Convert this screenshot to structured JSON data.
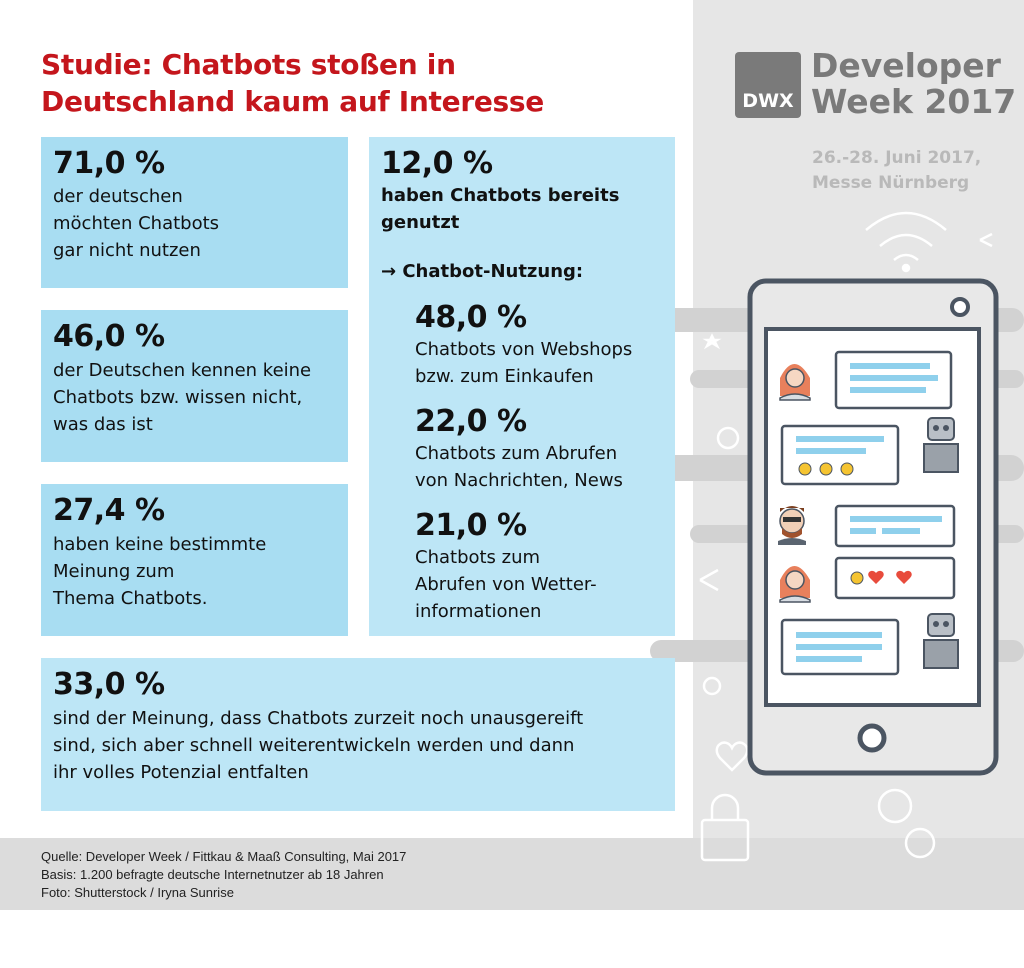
{
  "title_lines": [
    "Studie: Chatbots stoßen in",
    "Deutschland kaum auf Interesse"
  ],
  "stats": {
    "s1": {
      "percent": "71,0 %",
      "lines": [
        "der deutschen",
        "möchten Chatbots",
        "gar nicht nutzen"
      ]
    },
    "s2": {
      "percent": "46,0 %",
      "lines": [
        "der Deutschen kennen keine",
        "Chatbots bzw. wissen nicht,",
        "was das ist"
      ]
    },
    "s3": {
      "percent": "27,4 %",
      "lines": [
        "haben keine bestimmte",
        "Meinung zum",
        "Thema Chatbots."
      ]
    },
    "s4": {
      "percent": "12,0 %",
      "lines": [
        "haben Chatbots bereits",
        "genutzt"
      ]
    },
    "s5": {
      "percent": "33,0 %",
      "lines": [
        "sind der Meinung, dass Chatbots zurzeit noch unausgereift",
        "sind, sich aber schnell weiterentwickeln werden und dann",
        "ihr volles Potenzial entfalten"
      ]
    }
  },
  "usage": {
    "heading": "→ Chatbot-Nutzung:",
    "items": [
      {
        "percent": "48,0 %",
        "lines": [
          "Chatbots von Webshops",
          "bzw. zum Einkaufen"
        ]
      },
      {
        "percent": "22,0 %",
        "lines": [
          "Chatbots zum Abrufen",
          "von Nachrichten, News"
        ]
      },
      {
        "percent": "21,0 %",
        "lines": [
          "Chatbots zum",
          "Abrufen von Wetter-",
          "informationen"
        ]
      }
    ]
  },
  "event": {
    "logo": "DWX",
    "name_lines": [
      "Developer",
      "Week 2017"
    ],
    "info_lines": [
      "26.-28. Juni 2017,",
      "Messe Nürnberg"
    ]
  },
  "footer": {
    "source": "Quelle: Developer Week / Fittkau & Maaß Consulting, Mai 2017",
    "basis": "Basis: 1.200 befragte deutsche Internetnutzer ab 18 Jahren",
    "photo": "Foto: Shutterstock / Iryna Sunrise"
  },
  "colors": {
    "title": "#c4161c",
    "box": "#a8ddf2",
    "box_light": "#bde6f6",
    "panel": "#e6e6e6",
    "logo": "#7a7a7a"
  }
}
